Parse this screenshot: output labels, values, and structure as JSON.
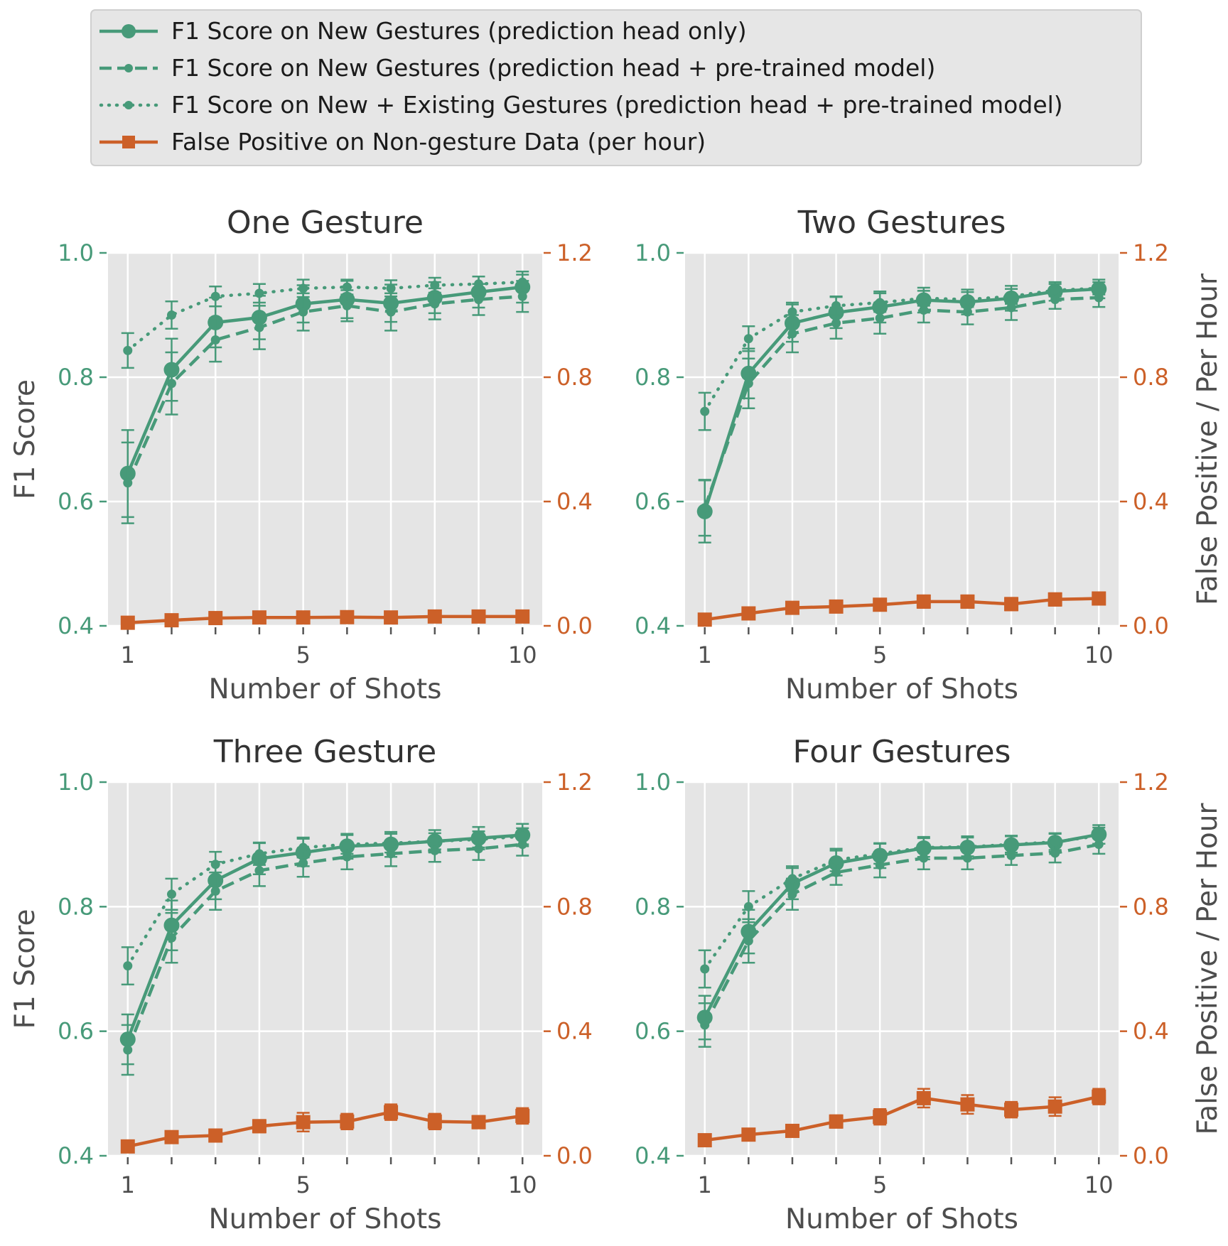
{
  "colors": {
    "green": "#479a79",
    "orange": "#cc6028",
    "panel_bg": "#e5e5e5",
    "grid": "#ffffff"
  },
  "legend": [
    {
      "label": "F1 Score on New Gestures (prediction head only)",
      "style": "solid-circle"
    },
    {
      "label": "F1 Score on New Gestures (prediction head + pre-trained model)",
      "style": "dashed-dot"
    },
    {
      "label": "F1 Score on New + Existing Gestures (prediction head + pre-trained model)",
      "style": "dotted-dot"
    },
    {
      "label": "False Positive on Non-gesture Data (per hour)",
      "style": "solid-square"
    }
  ],
  "chart_data": [
    {
      "type": "line",
      "title": "One Gesture",
      "xlabel": "Number of Shots",
      "ylabel": "F1 Score",
      "ylabel2": "",
      "x": [
        1,
        2,
        3,
        4,
        5,
        6,
        7,
        8,
        9,
        10
      ],
      "xticks": [
        "1",
        "5",
        "10"
      ],
      "ylim": [
        0.4,
        1.0
      ],
      "yticks": [
        "0.4",
        "0.6",
        "0.8",
        "1.0"
      ],
      "y2lim": [
        0.0,
        1.2
      ],
      "y2ticks": [
        "0.0",
        "0.4",
        "0.8",
        "1.2"
      ],
      "series": [
        {
          "name": "F1 Score on New Gestures (prediction head only)",
          "axis": "left",
          "style": "solid-circle",
          "values": [
            0.645,
            0.812,
            0.888,
            0.896,
            0.918,
            0.925,
            0.919,
            0.928,
            0.937,
            0.945
          ],
          "errors": [
            0.07,
            0.05,
            0.04,
            0.035,
            0.03,
            0.03,
            0.03,
            0.025,
            0.025,
            0.025
          ]
        },
        {
          "name": "F1 Score on New Gestures (prediction head + pre-trained model)",
          "axis": "left",
          "style": "dashed-dot",
          "values": [
            0.63,
            0.79,
            0.86,
            0.88,
            0.905,
            0.915,
            0.905,
            0.918,
            0.925,
            0.93
          ],
          "errors": [
            0.065,
            0.05,
            0.035,
            0.035,
            0.03,
            0.025,
            0.03,
            0.025,
            0.025,
            0.025
          ]
        },
        {
          "name": "F1 Score on New + Existing Gestures (prediction head + pre-trained model)",
          "axis": "left",
          "style": "dotted-dot",
          "values": [
            0.843,
            0.9,
            0.93,
            0.935,
            0.943,
            0.945,
            0.943,
            0.948,
            0.95,
            0.953
          ],
          "errors": [
            0.028,
            0.022,
            0.016,
            0.015,
            0.014,
            0.012,
            0.013,
            0.012,
            0.012,
            0.012
          ]
        },
        {
          "name": "False Positive on Non-gesture Data (per hour)",
          "axis": "right",
          "style": "solid-square",
          "values": [
            0.01,
            0.018,
            0.025,
            0.027,
            0.027,
            0.028,
            0.027,
            0.03,
            0.03,
            0.03
          ],
          "errors": [
            0,
            0,
            0,
            0,
            0,
            0,
            0,
            0,
            0,
            0
          ]
        }
      ]
    },
    {
      "type": "line",
      "title": "Two Gestures",
      "xlabel": "Number of Shots",
      "ylabel": "",
      "ylabel2": "False Positive / Per Hour",
      "x": [
        1,
        2,
        3,
        4,
        5,
        6,
        7,
        8,
        9,
        10
      ],
      "xticks": [
        "1",
        "5",
        "10"
      ],
      "ylim": [
        0.4,
        1.0
      ],
      "yticks": [
        "0.4",
        "0.6",
        "0.8",
        "1.0"
      ],
      "y2lim": [
        0.0,
        1.2
      ],
      "y2ticks": [
        "0.0",
        "0.4",
        "0.8",
        "1.2"
      ],
      "series": [
        {
          "name": "F1 Score on New Gestures (prediction head only)",
          "axis": "left",
          "style": "solid-circle",
          "values": [
            0.584,
            0.806,
            0.887,
            0.904,
            0.913,
            0.924,
            0.921,
            0.927,
            0.938,
            0.942
          ],
          "errors": [
            0.05,
            0.04,
            0.03,
            0.025,
            0.025,
            0.02,
            0.02,
            0.02,
            0.015,
            0.015
          ]
        },
        {
          "name": "F1 Score on New Gestures (prediction head + pre-trained model)",
          "axis": "left",
          "style": "dashed-dot",
          "values": [
            0.59,
            0.79,
            0.87,
            0.887,
            0.895,
            0.908,
            0.905,
            0.912,
            0.925,
            0.928
          ],
          "errors": [
            0.045,
            0.04,
            0.03,
            0.025,
            0.025,
            0.02,
            0.02,
            0.02,
            0.015,
            0.015
          ]
        },
        {
          "name": "F1 Score on New + Existing Gestures (prediction head + pre-trained model)",
          "axis": "left",
          "style": "dotted-dot",
          "values": [
            0.745,
            0.862,
            0.905,
            0.915,
            0.92,
            0.927,
            0.925,
            0.93,
            0.94,
            0.943
          ],
          "errors": [
            0.03,
            0.02,
            0.015,
            0.015,
            0.015,
            0.012,
            0.012,
            0.012,
            0.01,
            0.01
          ]
        },
        {
          "name": "False Positive on Non-gesture Data (per hour)",
          "axis": "right",
          "style": "solid-square",
          "values": [
            0.02,
            0.04,
            0.058,
            0.062,
            0.068,
            0.078,
            0.078,
            0.07,
            0.085,
            0.088
          ],
          "errors": [
            0,
            0,
            0,
            0,
            0,
            0.02,
            0.02,
            0.02,
            0.02,
            0.02
          ]
        }
      ]
    },
    {
      "type": "line",
      "title": "Three Gesture",
      "xlabel": "Number of Shots",
      "ylabel": "F1 Score",
      "ylabel2": "",
      "x": [
        1,
        2,
        3,
        4,
        5,
        6,
        7,
        8,
        9,
        10
      ],
      "xticks": [
        "1",
        "5",
        "10"
      ],
      "ylim": [
        0.4,
        1.0
      ],
      "yticks": [
        "0.4",
        "0.6",
        "0.8",
        "1.0"
      ],
      "y2lim": [
        0.0,
        1.2
      ],
      "y2ticks": [
        "0.0",
        "0.4",
        "0.8",
        "1.2"
      ],
      "series": [
        {
          "name": "F1 Score on New Gestures (prediction head only)",
          "axis": "left",
          "style": "solid-circle",
          "values": [
            0.587,
            0.77,
            0.842,
            0.877,
            0.887,
            0.897,
            0.9,
            0.905,
            0.91,
            0.915
          ],
          "errors": [
            0.04,
            0.04,
            0.03,
            0.025,
            0.022,
            0.02,
            0.02,
            0.018,
            0.018,
            0.018
          ]
        },
        {
          "name": "F1 Score on New Gestures (prediction head + pre-trained model)",
          "axis": "left",
          "style": "dashed-dot",
          "values": [
            0.57,
            0.75,
            0.825,
            0.858,
            0.87,
            0.88,
            0.885,
            0.89,
            0.893,
            0.9
          ],
          "errors": [
            0.04,
            0.04,
            0.03,
            0.025,
            0.022,
            0.02,
            0.02,
            0.018,
            0.018,
            0.018
          ]
        },
        {
          "name": "F1 Score on New + Existing Gestures (prediction head + pre-trained model)",
          "axis": "left",
          "style": "dotted-dot",
          "values": [
            0.705,
            0.82,
            0.868,
            0.885,
            0.895,
            0.9,
            0.902,
            0.905,
            0.908,
            0.913
          ],
          "errors": [
            0.03,
            0.025,
            0.02,
            0.018,
            0.016,
            0.015,
            0.015,
            0.013,
            0.013,
            0.013
          ]
        },
        {
          "name": "False Positive on Non-gesture Data (per hour)",
          "axis": "right",
          "style": "solid-square",
          "values": [
            0.03,
            0.06,
            0.065,
            0.095,
            0.108,
            0.11,
            0.14,
            0.11,
            0.108,
            0.128
          ],
          "errors": [
            0,
            0.01,
            0.01,
            0.02,
            0.03,
            0.025,
            0.025,
            0.025,
            0.02,
            0.025
          ]
        }
      ]
    },
    {
      "type": "line",
      "title": "Four Gestures",
      "xlabel": "Number of Shots",
      "ylabel": "",
      "ylabel2": "False Positive / Per Hour",
      "x": [
        1,
        2,
        3,
        4,
        5,
        6,
        7,
        8,
        9,
        10
      ],
      "xticks": [
        "1",
        "5",
        "10"
      ],
      "ylim": [
        0.4,
        1.0
      ],
      "yticks": [
        "0.4",
        "0.6",
        "0.8",
        "1.0"
      ],
      "y2lim": [
        0.0,
        1.2
      ],
      "y2ticks": [
        "0.0",
        "0.4",
        "0.8",
        "1.2"
      ],
      "series": [
        {
          "name": "F1 Score on New Gestures (prediction head only)",
          "axis": "left",
          "style": "solid-circle",
          "values": [
            0.622,
            0.76,
            0.837,
            0.87,
            0.882,
            0.894,
            0.895,
            0.899,
            0.903,
            0.916
          ],
          "errors": [
            0.035,
            0.035,
            0.025,
            0.02,
            0.02,
            0.018,
            0.018,
            0.015,
            0.015,
            0.015
          ]
        },
        {
          "name": "F1 Score on New Gestures (prediction head + pre-trained model)",
          "axis": "left",
          "style": "dashed-dot",
          "values": [
            0.61,
            0.745,
            0.82,
            0.855,
            0.867,
            0.878,
            0.878,
            0.882,
            0.886,
            0.9
          ],
          "errors": [
            0.035,
            0.035,
            0.025,
            0.02,
            0.02,
            0.018,
            0.018,
            0.015,
            0.015,
            0.015
          ]
        },
        {
          "name": "F1 Score on New + Existing Gestures (prediction head + pre-trained model)",
          "axis": "left",
          "style": "dotted-dot",
          "values": [
            0.7,
            0.8,
            0.845,
            0.875,
            0.885,
            0.895,
            0.896,
            0.9,
            0.904,
            0.914
          ],
          "errors": [
            0.03,
            0.025,
            0.02,
            0.018,
            0.016,
            0.015,
            0.015,
            0.013,
            0.013,
            0.013
          ]
        },
        {
          "name": "False Positive on Non-gesture Data (per hour)",
          "axis": "right",
          "style": "solid-square",
          "values": [
            0.05,
            0.068,
            0.08,
            0.11,
            0.125,
            0.185,
            0.165,
            0.148,
            0.158,
            0.19
          ],
          "errors": [
            0,
            0,
            0.01,
            0.02,
            0.025,
            0.03,
            0.03,
            0.025,
            0.03,
            0.025
          ]
        }
      ]
    }
  ]
}
